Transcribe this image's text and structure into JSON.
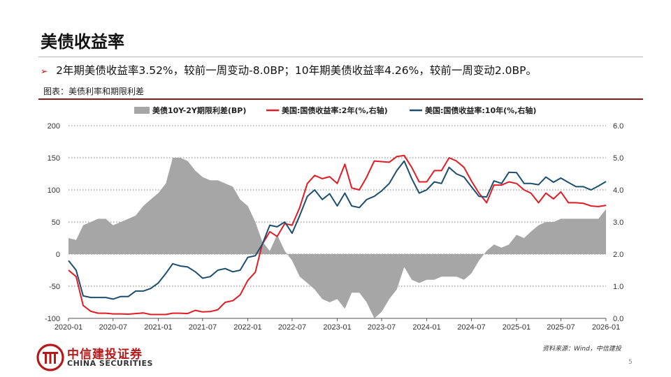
{
  "page": {
    "title": "美债收益率",
    "bullet": "2年期美债收益率3.52%，较前一周变动-8.0BP；10年期美债收益率4.26%，较前一周变动2.0BP。",
    "figure_caption": "图表：美债利率和期限利差",
    "source": "资料来源：Wind，中信建投",
    "page_number": "5",
    "logo_cn": "中信建投证券",
    "logo_en": "CHINA SECURITIES"
  },
  "colors": {
    "spread_area": "#a6a6a6",
    "y2_line": "#e01c24",
    "y10_line": "#1d4e6e",
    "accent_rule": "#8b1a1a",
    "brand_red": "#b41a1a"
  },
  "chart_data": {
    "type": "area+line",
    "legend": [
      {
        "name": "美债10Y-2Y期限利差(BP)",
        "kind": "area",
        "color": "#a6a6a6"
      },
      {
        "name": "美国:国债收益率:2年(%,右轴)",
        "kind": "line",
        "color": "#e01c24"
      },
      {
        "name": "美国:国债收益率:10年(%,右轴)",
        "kind": "line",
        "color": "#1d4e6e"
      }
    ],
    "legend_position": "top",
    "grid": "horizontal dashed",
    "x_tick_labels": [
      "2020-01",
      "2020-07",
      "2021-01",
      "2021-07",
      "2022-01",
      "2022-07",
      "2023-01",
      "2023-07",
      "2024-01",
      "2024-07",
      "2025-01",
      "2025-07",
      "2026-01"
    ],
    "x_range": [
      "2020-01",
      "2026-01"
    ],
    "left_axis": {
      "ticks": [
        200,
        150,
        100,
        50,
        0,
        -50,
        -100
      ],
      "ylim": [
        -100,
        200
      ]
    },
    "right_axis": {
      "ticks": [
        "6.0",
        "5.0",
        "4.0",
        "3.0",
        "2.0",
        "1.0",
        "0.0"
      ],
      "ylim": [
        0,
        6
      ]
    },
    "x": [
      "2020-01-01",
      "2020-02-01",
      "2020-03-01",
      "2020-04-01",
      "2020-05-01",
      "2020-06-01",
      "2020-07-01",
      "2020-08-01",
      "2020-09-01",
      "2020-10-01",
      "2020-11-01",
      "2020-12-01",
      "2021-01-01",
      "2021-02-01",
      "2021-03-01",
      "2021-04-01",
      "2021-05-01",
      "2021-06-01",
      "2021-07-01",
      "2021-08-01",
      "2021-09-01",
      "2021-10-01",
      "2021-11-01",
      "2021-12-01",
      "2022-01-01",
      "2022-02-01",
      "2022-03-01",
      "2022-04-01",
      "2022-05-01",
      "2022-06-01",
      "2022-07-01",
      "2022-08-01",
      "2022-09-01",
      "2022-10-01",
      "2022-11-01",
      "2022-12-01",
      "2023-01-01",
      "2023-02-01",
      "2023-03-01",
      "2023-04-01",
      "2023-05-01",
      "2023-06-01",
      "2023-07-01",
      "2023-08-01",
      "2023-09-01",
      "2023-10-01",
      "2023-11-01",
      "2023-12-01",
      "2024-01-01",
      "2024-02-01",
      "2024-03-01",
      "2024-04-01",
      "2024-05-01",
      "2024-06-01",
      "2024-07-01",
      "2024-08-01",
      "2024-09-01",
      "2024-10-01",
      "2024-11-01",
      "2024-12-01",
      "2025-01-01",
      "2025-02-01",
      "2025-03-01",
      "2025-04-01",
      "2025-05-01",
      "2025-06-01",
      "2025-07-01",
      "2025-08-01",
      "2025-09-01",
      "2025-10-01",
      "2025-11-01",
      "2025-12-01",
      "2026-01-01"
    ],
    "series": [
      {
        "name": "美债10Y-2Y期限利差(BP)",
        "axis": "left",
        "values": [
          25,
          22,
          45,
          50,
          55,
          55,
          45,
          50,
          55,
          60,
          75,
          85,
          95,
          110,
          150,
          150,
          145,
          130,
          120,
          115,
          115,
          110,
          105,
          85,
          75,
          50,
          20,
          5,
          30,
          5,
          -10,
          -35,
          -45,
          -55,
          -70,
          -75,
          -70,
          -85,
          -60,
          -60,
          -75,
          -100,
          -90,
          -70,
          -55,
          -20,
          -40,
          -45,
          -40,
          -40,
          -35,
          -35,
          -35,
          -40,
          -30,
          -10,
          5,
          15,
          10,
          15,
          30,
          25,
          35,
          45,
          50,
          50,
          55,
          55,
          55,
          55,
          55,
          55,
          70
        ]
      },
      {
        "name": "美国:国债收益率:2年(%,右轴)",
        "axis": "right",
        "values": [
          1.5,
          1.3,
          0.4,
          0.22,
          0.16,
          0.16,
          0.14,
          0.14,
          0.13,
          0.15,
          0.17,
          0.12,
          0.12,
          0.12,
          0.16,
          0.16,
          0.15,
          0.25,
          0.2,
          0.21,
          0.27,
          0.5,
          0.55,
          0.73,
          1.18,
          1.44,
          2.3,
          2.7,
          2.55,
          2.95,
          2.9,
          3.45,
          4.2,
          4.45,
          4.35,
          4.41,
          4.2,
          4.8,
          4.06,
          4.0,
          4.4,
          4.9,
          4.88,
          4.86,
          5.04,
          5.07,
          4.7,
          4.25,
          4.25,
          4.6,
          4.6,
          5.0,
          4.9,
          4.7,
          4.28,
          3.9,
          3.6,
          4.15,
          4.15,
          4.25,
          4.2,
          4.0,
          3.9,
          3.6,
          3.9,
          3.72,
          3.94,
          3.6,
          3.6,
          3.58,
          3.5,
          3.48,
          3.52
        ]
      },
      {
        "name": "美国:国债收益率:10年(%,右轴)",
        "axis": "right",
        "values": [
          1.8,
          1.5,
          0.7,
          0.65,
          0.65,
          0.65,
          0.6,
          0.68,
          0.68,
          0.85,
          0.85,
          0.93,
          1.1,
          1.4,
          1.7,
          1.63,
          1.6,
          1.45,
          1.25,
          1.3,
          1.5,
          1.55,
          1.45,
          1.5,
          1.9,
          1.95,
          2.3,
          2.9,
          2.85,
          3.0,
          2.65,
          3.2,
          3.8,
          4.0,
          3.7,
          3.88,
          3.5,
          3.9,
          3.5,
          3.45,
          3.7,
          3.8,
          3.97,
          4.2,
          4.6,
          4.9,
          4.35,
          3.9,
          4.0,
          4.25,
          4.2,
          4.7,
          4.5,
          4.4,
          4.1,
          3.8,
          3.78,
          4.28,
          4.2,
          4.55,
          4.54,
          4.2,
          4.2,
          4.16,
          4.4,
          4.24,
          4.37,
          4.23,
          4.1,
          4.1,
          4.0,
          4.12,
          4.26
        ]
      }
    ]
  }
}
